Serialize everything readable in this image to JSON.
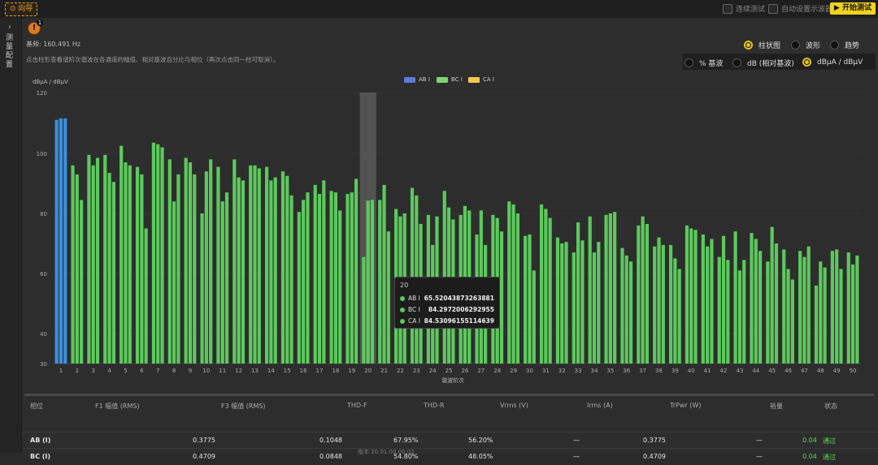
{
  "topbar": {
    "guide_label": "向导",
    "continuous_test_label": "连续测试",
    "auto_scope_label": "自动设置示波器",
    "start_test_label": "开始测试"
  },
  "sidebar": {
    "title": "测量配置"
  },
  "info": {
    "badge": "1"
  },
  "base_frequency": "基频: 160.491 Hz",
  "hint": "点击柱形查看谐阶次谐波在各通道的幅值、相对基波百分比与相位（再次点击同一柱可取消）。",
  "view_modes": [
    {
      "label": "柱状图",
      "selected": true
    },
    {
      "label": "波形",
      "selected": false
    },
    {
      "label": "趋势",
      "selected": false
    }
  ],
  "unit_modes": [
    {
      "label": "% 基波",
      "selected": false
    },
    {
      "label": "dB (相对基波)",
      "selected": false
    },
    {
      "label": "dBμA / dBμV",
      "selected": true
    }
  ],
  "colors": {
    "blue": "#3b8fe0",
    "green": "#5cc95c",
    "gold": "#f5c84a",
    "accent": "#e8c21a",
    "highlight": "#5a5a5a"
  },
  "chart_data": {
    "type": "bar",
    "ylabel": "dBμA / dBμV",
    "xlabel": "谐波阶次",
    "ylim": [
      30,
      120
    ],
    "yticks": [
      30,
      40,
      60,
      80,
      100,
      120
    ],
    "legend": [
      {
        "name": "AB I",
        "color": "#5b7ad6"
      },
      {
        "name": "BC I",
        "color": "#7bd86b"
      },
      {
        "name": "CA I",
        "color": "#f5c84a"
      }
    ],
    "highlighted_order": 20,
    "x": [
      1,
      2,
      3,
      4,
      5,
      6,
      7,
      8,
      9,
      10,
      11,
      12,
      13,
      14,
      15,
      16,
      17,
      18,
      19,
      20,
      21,
      22,
      23,
      24,
      25,
      26,
      27,
      28,
      29,
      30,
      31,
      32,
      33,
      34,
      35,
      36,
      37,
      38,
      39,
      40,
      41,
      42,
      43,
      44,
      45,
      46,
      47,
      48,
      49,
      50
    ],
    "series": [
      {
        "name": "AB I",
        "values": [
          111.0,
          96.0,
          99.5,
          99.5,
          102.5,
          95.5,
          103.5,
          98.0,
          98.5,
          80.0,
          95.5,
          98.0,
          96.0,
          95.5,
          94.0,
          80.5,
          89.5,
          87.5,
          86.5,
          65.5,
          84.5,
          81.5,
          88.5,
          79.5,
          87.5,
          79.5,
          73.0,
          79.5,
          84.0,
          72.5,
          83.0,
          72.0,
          67.0,
          79.0,
          79.5,
          68.5,
          76.0,
          69.0,
          69.5,
          76.0,
          73.0,
          65.5,
          74.0,
          73.5,
          64.0,
          68.0,
          67.5,
          56.0,
          67.5,
          67.0
        ]
      },
      {
        "name": "BC I",
        "values": [
          111.5,
          93.0,
          96.0,
          93.5,
          97.0,
          93.0,
          103.0,
          84.0,
          97.0,
          94.0,
          84.0,
          92.0,
          96.0,
          91.0,
          92.5,
          84.5,
          86.5,
          87.0,
          87.0,
          84.2972006292955,
          89.5,
          79.0,
          86.0,
          69.5,
          82.0,
          82.5,
          81.0,
          78.5,
          83.0,
          73.0,
          81.5,
          70.0,
          77.0,
          67.0,
          80.0,
          66.0,
          79.0,
          72.0,
          65.0,
          75.0,
          69.0,
          72.5,
          61.0,
          71.5,
          75.5,
          61.5,
          65.5,
          64.0,
          68.0,
          63.0
        ]
      },
      {
        "name": "CA I",
        "values": [
          111.5,
          84.5,
          98.5,
          90.5,
          96.0,
          75.0,
          102.0,
          93.0,
          93.0,
          98.0,
          87.0,
          91.0,
          95.0,
          92.0,
          86.0,
          87.0,
          91.0,
          81.0,
          91.5,
          84.53096155114639,
          74.0,
          80.0,
          76.5,
          79.0,
          78.0,
          81.0,
          69.5,
          74.0,
          80.0,
          61.0,
          78.5,
          70.5,
          71.0,
          70.5,
          80.5,
          64.0,
          76.5,
          69.5,
          61.5,
          74.5,
          71.5,
          64.5,
          64.5,
          67.5,
          70.0,
          58.0,
          69.0,
          62.0,
          61.5,
          66.0
        ]
      }
    ],
    "tooltip": {
      "title": "20",
      "rows": [
        {
          "name": "AB I",
          "value": "65.52043873263881"
        },
        {
          "name": "BC I",
          "value": "84.2972006292955"
        },
        {
          "name": "CA I",
          "value": "84.53096155114639"
        }
      ]
    }
  },
  "table": {
    "headers": [
      "相位",
      "F1 幅值 (RMS)",
      "F3 幅值 (RMS)",
      "THD-F",
      "THD-R",
      "Vrms (V)",
      "Irms (A)",
      "TrPwr (W)",
      "裕量",
      "状态"
    ],
    "rows": [
      [
        "AB (I)",
        "0.3775",
        "0.1048",
        "67.95%",
        "56.20%",
        "—",
        "0.3775",
        "—",
        "0.04",
        "通过"
      ],
      [
        "BC (I)",
        "0.4709",
        "0.0848",
        "54.80%",
        "48.05%",
        "—",
        "0.4709",
        "—",
        "0.04",
        "通过"
      ]
    ]
  },
  "footer": "版本 20.01.00.00.02"
}
